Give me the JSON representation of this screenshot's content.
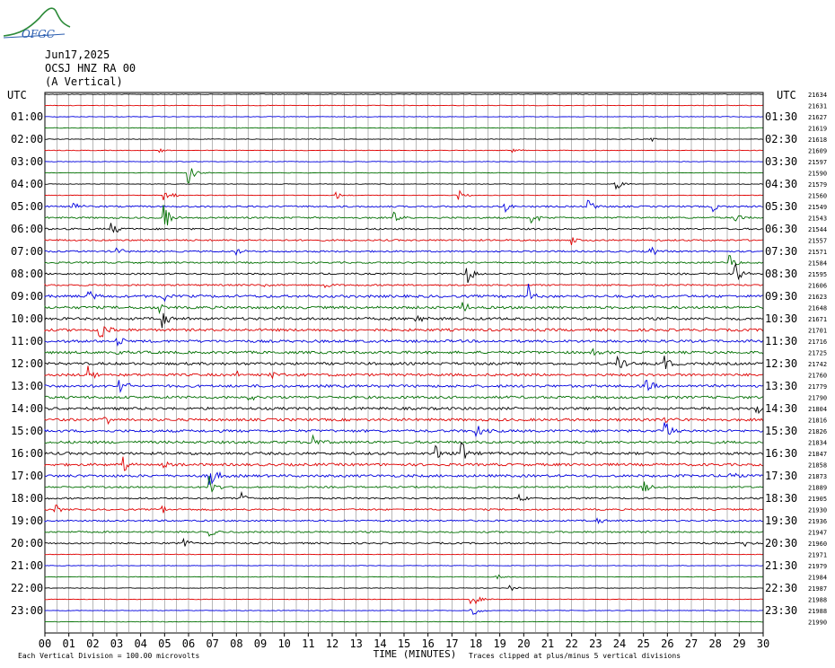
{
  "logo": {
    "text": "OFGC"
  },
  "header": {
    "date": "Jun17,2025",
    "station": "OCSJ HNZ RA 00",
    "component": "(A Vertical)"
  },
  "chart_data": {
    "type": "line",
    "title": "",
    "left_axis_label": "UTC",
    "right_axis_label": "UTC",
    "xlabel": "TIME (MINUTES)",
    "x_ticks": [
      "00",
      "01",
      "02",
      "03",
      "04",
      "05",
      "06",
      "07",
      "08",
      "09",
      "10",
      "11",
      "12",
      "13",
      "14",
      "15",
      "16",
      "17",
      "18",
      "19",
      "20",
      "21",
      "22",
      "23",
      "24",
      "25",
      "26",
      "27",
      "28",
      "29",
      "30"
    ],
    "xlim": [
      0,
      30
    ],
    "left_hour_labels": [
      "01:00",
      "02:00",
      "03:00",
      "04:00",
      "05:00",
      "06:00",
      "07:00",
      "08:00",
      "09:00",
      "10:00",
      "11:00",
      "12:00",
      "13:00",
      "14:00",
      "15:00",
      "16:00",
      "17:00",
      "18:00",
      "19:00",
      "20:00",
      "21:00",
      "22:00",
      "23:00"
    ],
    "right_hour_labels": [
      "01:30",
      "02:30",
      "03:30",
      "04:30",
      "05:30",
      "06:30",
      "07:30",
      "08:30",
      "09:30",
      "10:30",
      "11:30",
      "12:30",
      "13:30",
      "14:30",
      "15:30",
      "16:30",
      "17:30",
      "18:30",
      "19:30",
      "20:30",
      "21:30",
      "22:30",
      "23:30"
    ],
    "trace_values": [
      "21634",
      "21631",
      "21627",
      "21619",
      "21618",
      "21609",
      "21597",
      "21590",
      "21579",
      "21560",
      "21549",
      "21543",
      "21544",
      "21557",
      "21571",
      "21584",
      "21595",
      "21606",
      "21623",
      "21648",
      "21671",
      "21701",
      "21716",
      "21725",
      "21742",
      "21760",
      "21779",
      "21790",
      "21804",
      "21816",
      "21826",
      "21834",
      "21847",
      "21858",
      "21873",
      "21889",
      "21905",
      "21930",
      "21936",
      "21947",
      "21960",
      "21971",
      "21979",
      "21984",
      "21987",
      "21988",
      "21988",
      "21990"
    ],
    "trace_colors": [
      "#000000",
      "#e00000",
      "#0000e0",
      "#007000"
    ],
    "scale_note": "Each Vertical Division =  100.00 microvolts",
    "clip_note": "Traces clipped at plus/minus 5 vertical divisions",
    "grid": true
  }
}
